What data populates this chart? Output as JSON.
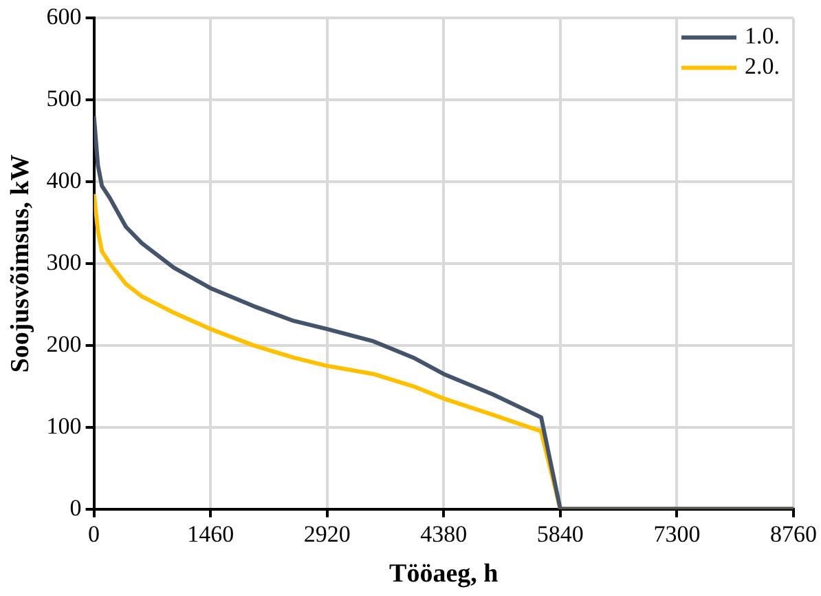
{
  "chart_data": {
    "type": "line",
    "xlabel": "Tööaeg, h",
    "ylabel": "Soojusvõimsus, kW",
    "xlim": [
      0,
      8760
    ],
    "xticks": [
      0,
      1460,
      2920,
      4380,
      5840,
      7300,
      8760
    ],
    "ylim": [
      0,
      600
    ],
    "yticks": [
      0,
      100,
      200,
      300,
      400,
      500,
      600
    ],
    "grid": true,
    "legend": "top right",
    "marker": "none",
    "line_style": "solid",
    "series": [
      {
        "name": "1.0.",
        "color": "#44546a",
        "x": [
          0,
          50,
          100,
          200,
          400,
          600,
          1000,
          1460,
          2000,
          2500,
          2920,
          3500,
          4000,
          4380,
          5000,
          5600,
          5840,
          8760
        ],
        "values": [
          480,
          420,
          395,
          380,
          345,
          325,
          295,
          270,
          248,
          230,
          220,
          205,
          185,
          165,
          140,
          112,
          0,
          0
        ]
      },
      {
        "name": "2.0.",
        "color": "#ffc000",
        "x": [
          0,
          50,
          100,
          200,
          400,
          600,
          1000,
          1460,
          2000,
          2500,
          2920,
          3500,
          4000,
          4380,
          5000,
          5600,
          5840,
          8760
        ],
        "values": [
          385,
          340,
          315,
          300,
          275,
          260,
          240,
          220,
          200,
          185,
          175,
          165,
          150,
          135,
          115,
          95,
          0,
          0
        ]
      }
    ]
  }
}
